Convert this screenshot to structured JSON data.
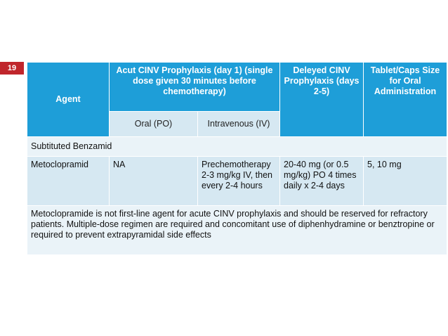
{
  "slide_number": "19",
  "table": {
    "headers": {
      "agent": "Agent",
      "acute": "Acut CINV Prophylaxis (day 1) (single dose given 30 minutes before chemotherapy)",
      "delayed": "Deleyed CINV Prophylaxis (days 2-5)",
      "tablet": "Tablet/Caps Size for Oral Administration",
      "oral": "Oral (PO)",
      "iv": "Intravenous (IV)"
    },
    "section": "Subtituted Benzamid",
    "row": {
      "agent": "Metoclopramid",
      "oral": "NA",
      "iv": "Prechemotherapy 2-3 mg/kg IV, then every 2-4 hours",
      "delayed": "20-40 mg (or 0.5 mg/kg) PO 4 times daily x 2-4 days",
      "tablet": "5, 10 mg"
    },
    "note": "Metoclopramide is not first-line agent for acute CINV prophylaxis and should be reserved for refractory patients. Multiple-dose regimen are required and concomitant use of diphenhydramine or benztropine or required to prevent extrapyramidal side effects"
  },
  "colors": {
    "header_bg": "#1e9ed8",
    "row_light": "#eaf3f8",
    "row_mid": "#d6e8f2",
    "slide_badge": "#c0262c"
  }
}
